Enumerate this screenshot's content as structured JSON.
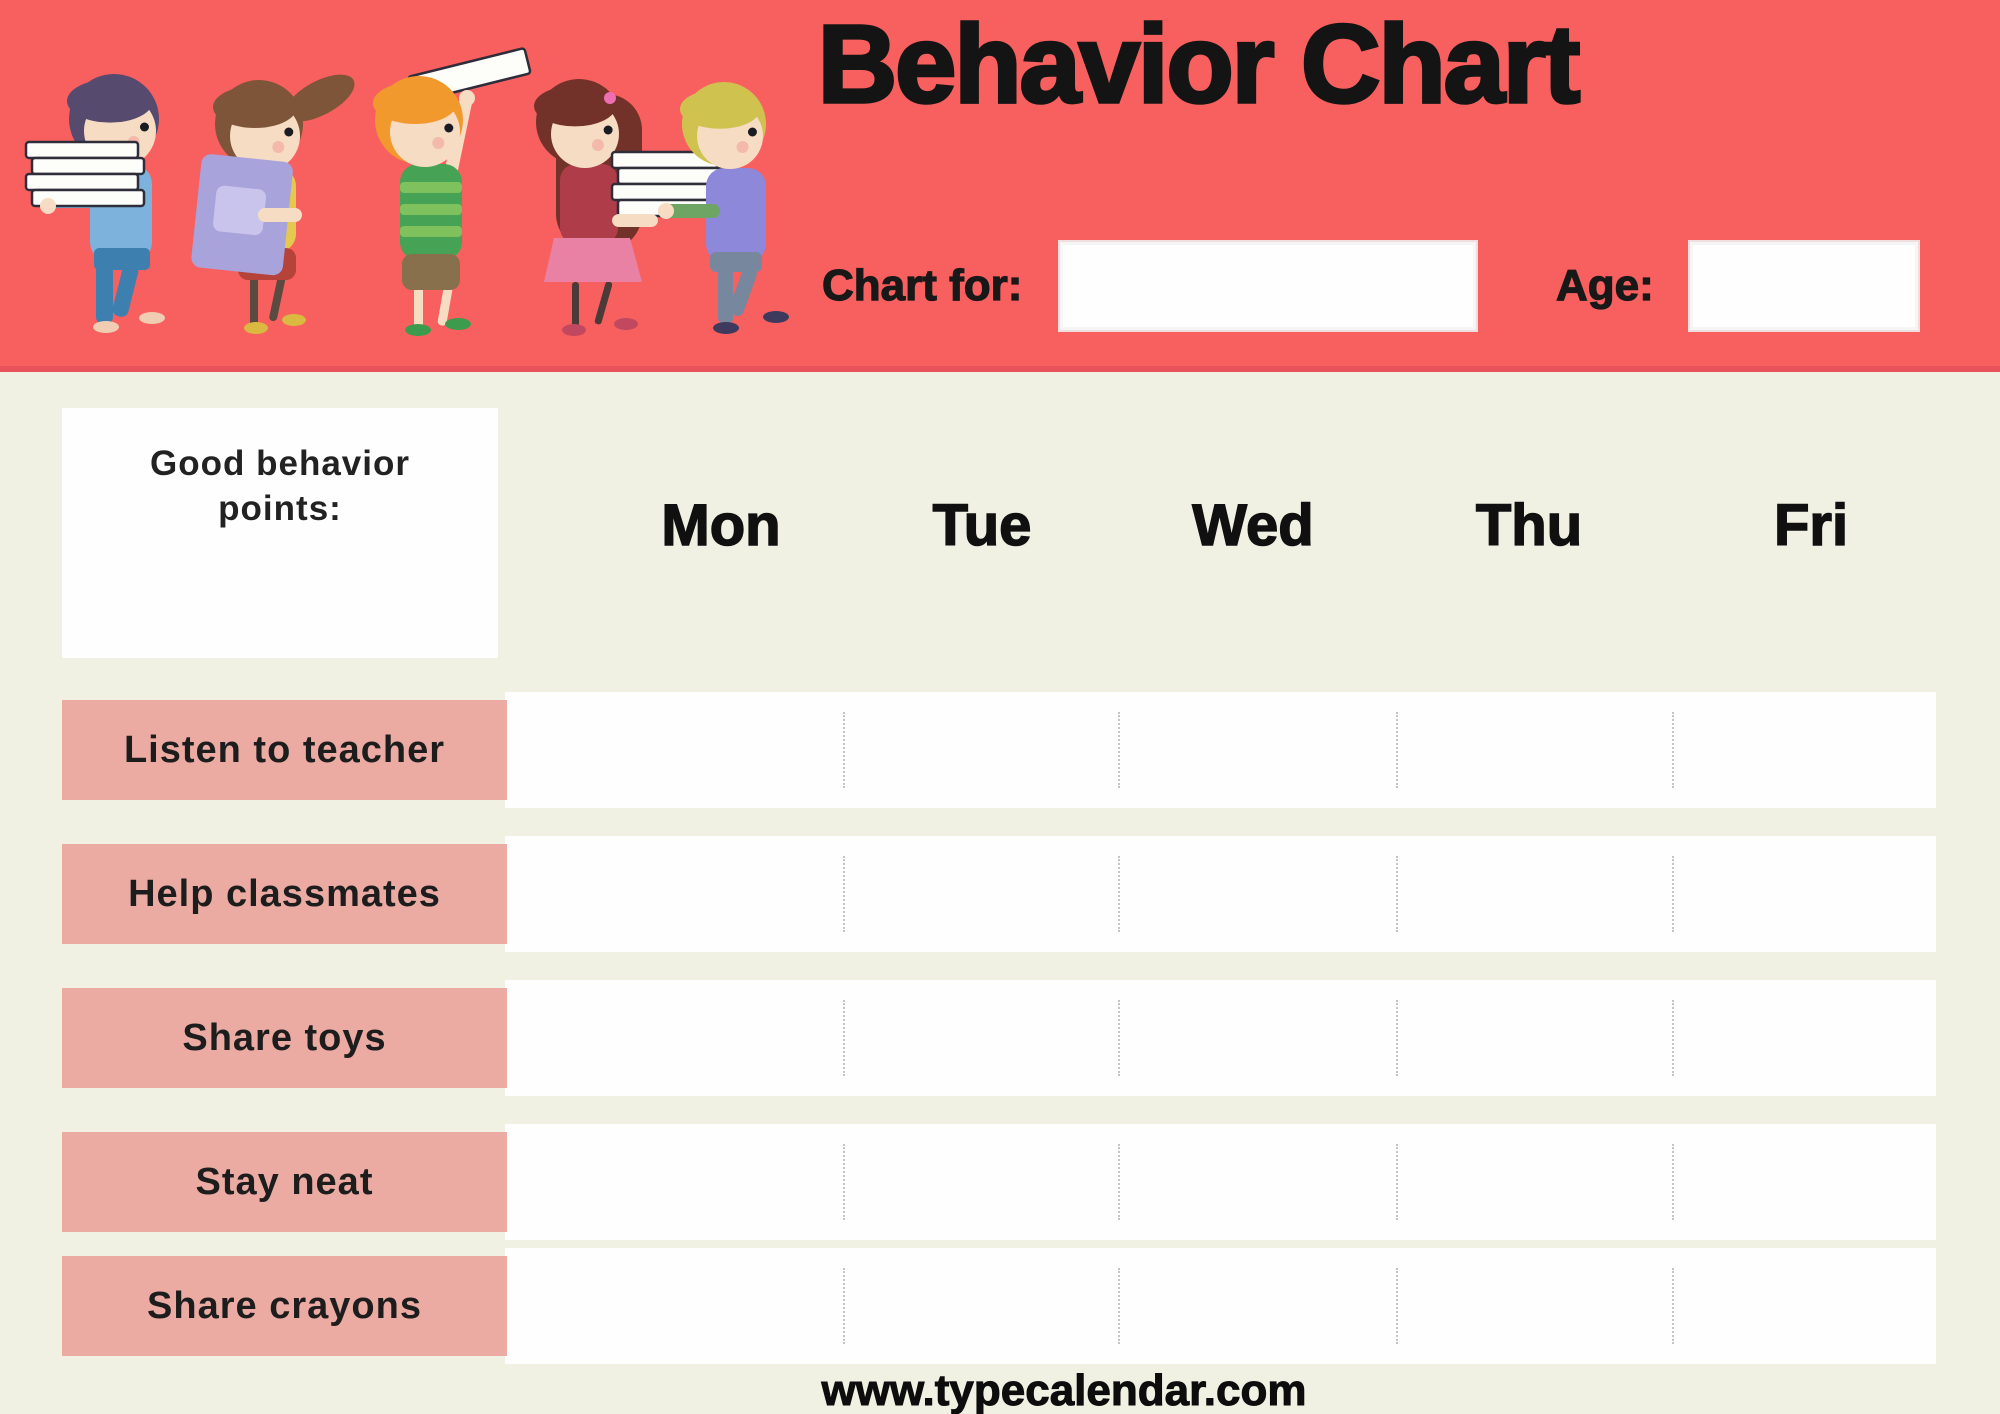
{
  "colors": {
    "header_bg": "#f8605f",
    "header_edge": "#e8525a",
    "page_bg": "#f0f0e3",
    "row_label_bg": "#ebaba3",
    "cell_bg": "#fefefe",
    "separator": "#c4c4c4",
    "text": "#141414"
  },
  "header": {
    "title": "Behavior Chart",
    "chart_for_label": "Chart for:",
    "chart_for_value": "",
    "age_label": "Age:",
    "age_value": ""
  },
  "illustration": {
    "alt": "Five cartoon children walking in a line carrying books",
    "kids": [
      {
        "name": "boy-with-book-stack",
        "hair": "#564a6e",
        "skin": "#f7dcc4",
        "shirt": "#7cb2dc",
        "bottom": "#3d7fae",
        "shoes": "#f0cdb2",
        "carrying": "stack of books"
      },
      {
        "name": "girl-with-purple-folder",
        "hair": "#7e5539",
        "skin": "#f7dcc4",
        "shirt": "#e5c94e",
        "bottom": "#b5433a",
        "shoes": "#d9b93f",
        "carrying": "purple folder",
        "folder": "#a9a3db",
        "folder_inner": "#c9c4ec"
      },
      {
        "name": "boy-with-book-overhead",
        "hair": "#f2992e",
        "skin": "#f7dcc4",
        "shirt": "#46a254",
        "stripe": "#7fc15d",
        "bottom": "#87704b",
        "shoes": "#3d9b4e",
        "carrying": "book overhead"
      },
      {
        "name": "girl-with-book-stack",
        "hair": "#733229",
        "skin": "#f7dcc4",
        "shirt": "#ae3c49",
        "bottom": "#e881a4",
        "shoes": "#c2485f",
        "carrying": "stack of books",
        "accent": "#ec6fb1"
      },
      {
        "name": "boy-reaching-for-books",
        "hair": "#cfc24f",
        "skin": "#f7dcc4",
        "shirt": "#8d88d9",
        "sleeve": "#6fa564",
        "bottom": "#76879e",
        "shoes": "#3e3a5e",
        "carrying": "stack of books"
      }
    ],
    "book_fill": "#fdfdfa",
    "book_edge": "#2e2d3a"
  },
  "table": {
    "corner_label": "Good behavior points:",
    "days": [
      "Mon",
      "Tue",
      "Wed",
      "Thu",
      "Fri"
    ],
    "rows": [
      "Listen to teacher",
      "Help classmates",
      "Share toys",
      "Stay neat",
      "Share crayons"
    ]
  },
  "footer": {
    "url": "www.typecalendar.com"
  }
}
